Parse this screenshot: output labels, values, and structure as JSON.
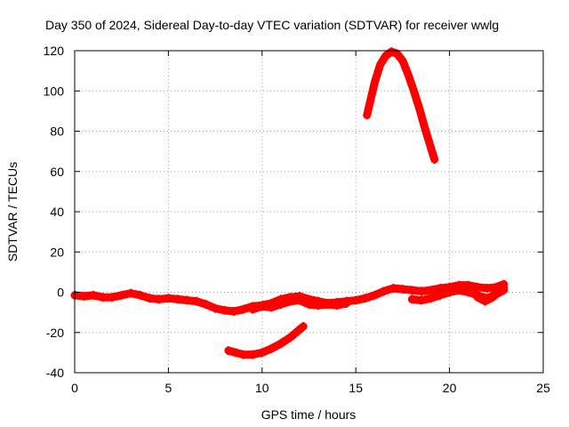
{
  "chart_data": {
    "type": "line",
    "title": "Day 350 of 2024, Sidereal Day-to-day VTEC variation (SDTVAR) for receiver wwlg",
    "xlabel": "GPS time / hours",
    "ylabel": "SDTVAR / TECUs",
    "xlim": [
      0,
      25
    ],
    "ylim": [
      -40,
      120
    ],
    "xticks": [
      0,
      5,
      10,
      15,
      20,
      25
    ],
    "yticks": [
      -40,
      -20,
      0,
      20,
      40,
      60,
      80,
      100,
      120
    ],
    "grid": true,
    "series_color": "#ff0000",
    "series": [
      {
        "name": "main-band",
        "values": [
          [
            0.0,
            -1.5
          ],
          [
            0.5,
            -2.0
          ],
          [
            1.0,
            -1.5
          ],
          [
            1.5,
            -2.5
          ],
          [
            2.0,
            -2.5
          ],
          [
            2.5,
            -1.5
          ],
          [
            3.0,
            -0.5
          ],
          [
            3.5,
            -1.5
          ],
          [
            4.0,
            -3.0
          ],
          [
            4.5,
            -3.5
          ],
          [
            5.0,
            -3.0
          ],
          [
            5.5,
            -3.5
          ],
          [
            6.0,
            -4.0
          ],
          [
            6.5,
            -4.5
          ],
          [
            7.0,
            -6.0
          ],
          [
            7.5,
            -8.0
          ],
          [
            8.0,
            -9.0
          ],
          [
            8.5,
            -9.5
          ],
          [
            9.0,
            -8.5
          ],
          [
            9.5,
            -7.0
          ],
          [
            10.0,
            -6.5
          ],
          [
            10.5,
            -5.5
          ],
          [
            11.0,
            -3.5
          ],
          [
            11.5,
            -2.5
          ],
          [
            12.0,
            -2.0
          ],
          [
            12.5,
            -3.5
          ],
          [
            13.0,
            -4.5
          ],
          [
            13.5,
            -5.5
          ],
          [
            14.0,
            -5.0
          ],
          [
            14.5,
            -4.5
          ],
          [
            15.0,
            -4.0
          ],
          [
            15.5,
            -3.0
          ],
          [
            16.0,
            -1.5
          ],
          [
            16.5,
            0.5
          ],
          [
            17.0,
            2.0
          ],
          [
            17.5,
            1.5
          ],
          [
            18.0,
            1.0
          ],
          [
            18.5,
            0.5
          ],
          [
            19.0,
            1.0
          ],
          [
            19.5,
            2.0
          ],
          [
            20.0,
            2.5
          ],
          [
            20.5,
            3.5
          ],
          [
            21.0,
            3.5
          ],
          [
            21.5,
            2.5
          ],
          [
            22.0,
            2.0
          ],
          [
            22.5,
            2.5
          ],
          [
            22.9,
            4.0
          ]
        ]
      },
      {
        "name": "main-band-lower",
        "values": [
          [
            9.5,
            -8.5
          ],
          [
            10.0,
            -7.0
          ],
          [
            10.5,
            -7.5
          ],
          [
            11.0,
            -6.0
          ],
          [
            11.5,
            -4.5
          ],
          [
            12.0,
            -4.0
          ],
          [
            12.5,
            -6.0
          ],
          [
            13.0,
            -6.5
          ],
          [
            13.5,
            -6.0
          ],
          [
            14.0,
            -6.5
          ],
          [
            14.5,
            -5.5
          ]
        ]
      },
      {
        "name": "late-lower-band",
        "values": [
          [
            18.0,
            -3.5
          ],
          [
            18.5,
            -4.0
          ],
          [
            19.0,
            -3.0
          ],
          [
            19.5,
            -1.5
          ],
          [
            20.0,
            0.0
          ],
          [
            20.5,
            1.0
          ],
          [
            21.0,
            0.0
          ],
          [
            21.5,
            -1.5
          ],
          [
            22.0,
            -3.0
          ],
          [
            22.5,
            -1.0
          ],
          [
            22.9,
            1.0
          ]
        ]
      },
      {
        "name": "late-arc",
        "values": [
          [
            21.5,
            -2.5
          ],
          [
            21.9,
            -4.5
          ],
          [
            22.3,
            -2.5
          ],
          [
            22.7,
            1.0
          ],
          [
            22.9,
            2.5
          ]
        ]
      },
      {
        "name": "arc-high",
        "values": [
          [
            15.6,
            88
          ],
          [
            16.0,
            104
          ],
          [
            16.3,
            113
          ],
          [
            16.6,
            117.5
          ],
          [
            16.9,
            119.5
          ],
          [
            17.2,
            118.5
          ],
          [
            17.5,
            115
          ],
          [
            17.8,
            108
          ],
          [
            18.1,
            100
          ],
          [
            18.4,
            91
          ],
          [
            18.7,
            81
          ],
          [
            19.0,
            72
          ],
          [
            19.2,
            66
          ]
        ]
      },
      {
        "name": "arc-low",
        "values": [
          [
            8.2,
            -29
          ],
          [
            8.6,
            -30
          ],
          [
            9.0,
            -31
          ],
          [
            9.5,
            -31
          ],
          [
            10.0,
            -30
          ],
          [
            10.5,
            -28
          ],
          [
            11.0,
            -25.5
          ],
          [
            11.5,
            -22.5
          ],
          [
            12.0,
            -18.5
          ],
          [
            12.2,
            -17
          ]
        ]
      }
    ]
  }
}
